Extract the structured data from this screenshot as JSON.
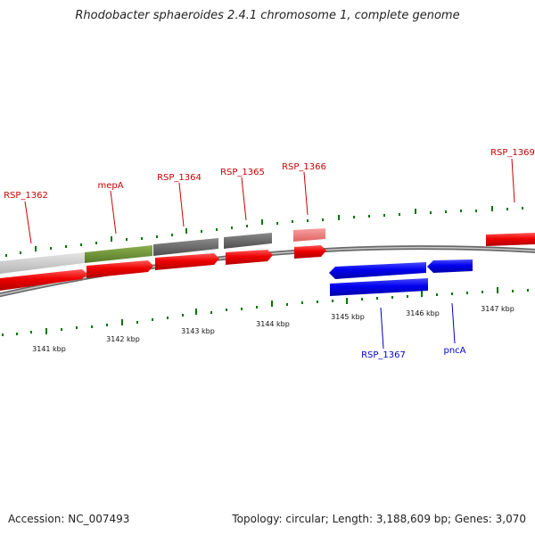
{
  "title": "Rhodobacter sphaeroides 2.4.1 chromosome 1, complete genome",
  "footer": {
    "accession": "Accession: NC_007493",
    "meta": "Topology: circular; Length: 3,188,609 bp; Genes: 3,070"
  },
  "colors": {
    "forward": "#ee0000",
    "reverse": "#0000ee",
    "backbone": "#888888",
    "tick": "#007700"
  },
  "axis_labels": [
    "3141 kbp",
    "3142 kbp",
    "3143 kbp",
    "3144 kbp",
    "3145 kbp",
    "3146 kbp",
    "3147 kbp"
  ],
  "genes": [
    {
      "name": "RSP_1362",
      "strand": "+"
    },
    {
      "name": "mepA",
      "strand": "+"
    },
    {
      "name": "RSP_1364",
      "strand": "+"
    },
    {
      "name": "RSP_1365",
      "strand": "+"
    },
    {
      "name": "RSP_1366",
      "strand": "+"
    },
    {
      "name": "RSP_1367",
      "strand": "-"
    },
    {
      "name": "pncA",
      "strand": "-"
    },
    {
      "name": "RSP_1369",
      "strand": "+"
    }
  ]
}
